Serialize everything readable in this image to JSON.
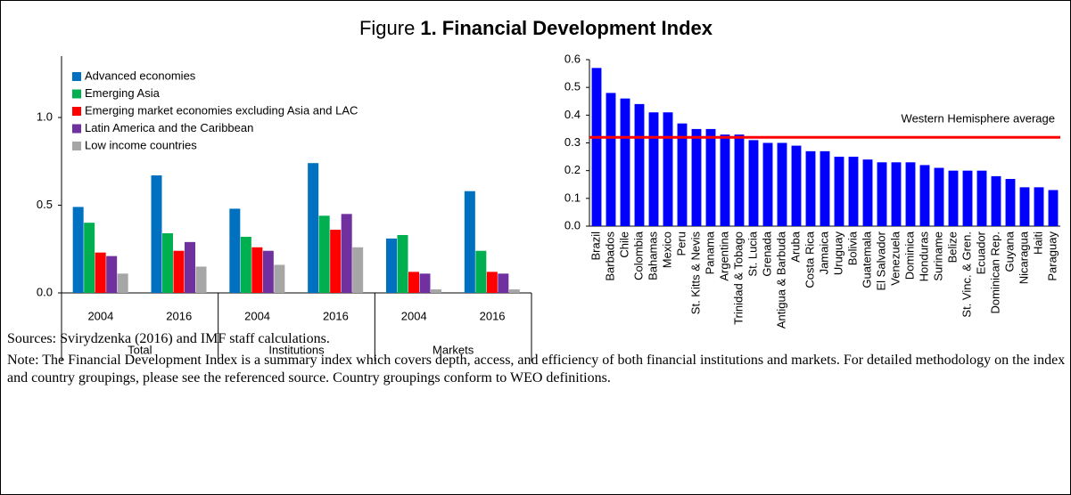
{
  "figure_label": "Figure",
  "title": "1. Financial Development Index",
  "chart_data": [
    {
      "type": "bar",
      "categories": [
        "2004",
        "2016",
        "2004",
        "2016",
        "2004",
        "2016"
      ],
      "groups": [
        "Total",
        "Institutions",
        "Markets"
      ],
      "ylim": [
        0,
        1.35
      ],
      "yticks": [
        {
          "value": 0,
          "label": "0.0"
        },
        {
          "value": 0.5,
          "label": "0.5"
        },
        {
          "value": 1,
          "label": "1.0"
        }
      ],
      "legend": "upper left",
      "series": [
        {
          "name": "Advanced economies",
          "color": "#0070c0",
          "values": [
            0.49,
            0.67,
            0.48,
            0.74,
            0.31,
            0.58
          ]
        },
        {
          "name": "Emerging Asia",
          "color": "#00b050",
          "values": [
            0.4,
            0.34,
            0.32,
            0.44,
            0.33,
            0.24
          ]
        },
        {
          "name": "Emerging market economies excluding Asia and LAC",
          "color": "#ff0000",
          "values": [
            0.23,
            0.24,
            0.26,
            0.36,
            0.12,
            0.12
          ]
        },
        {
          "name": "Latin America and the Caribbean",
          "color": "#7030a0",
          "values": [
            0.21,
            0.29,
            0.24,
            0.45,
            0.11,
            0.11
          ]
        },
        {
          "name": "Low income countries",
          "color": "#a6a6a6",
          "values": [
            0.11,
            0.15,
            0.16,
            0.26,
            0.02,
            0.02
          ]
        }
      ]
    },
    {
      "type": "bar",
      "categories": [
        "Brazil",
        "Barbados",
        "Chile",
        "Colombia",
        "Bahamas",
        "Mexico",
        "Peru",
        "St. Kitts & Nevis",
        "Panama",
        "Argentina",
        "Trinidad & Tobago",
        "St. Lucia",
        "Grenada",
        "Antigua & Barbuda",
        "Aruba",
        "Costa Rica",
        "Jamaica",
        "Uruguay",
        "Bolivia",
        "Guatemala",
        "El Salvador",
        "Venezuela",
        "Dominica",
        "Honduras",
        "Suriname",
        "Belize",
        "St. Vinc. & Gren.",
        "Ecuador",
        "Dominican Rep.",
        "Guyana",
        "Nicaragua",
        "Haiti",
        "Paraguay"
      ],
      "values": [
        0.57,
        0.48,
        0.46,
        0.44,
        0.41,
        0.41,
        0.37,
        0.35,
        0.35,
        0.33,
        0.33,
        0.31,
        0.3,
        0.3,
        0.29,
        0.27,
        0.27,
        0.25,
        0.25,
        0.24,
        0.23,
        0.23,
        0.23,
        0.22,
        0.21,
        0.2,
        0.2,
        0.2,
        0.18,
        0.17,
        0.14,
        0.14,
        0.13
      ],
      "color": "#0000ff",
      "ylim": [
        0,
        0.6
      ],
      "yticks": [
        {
          "value": 0,
          "label": "0.0"
        },
        {
          "value": 0.1,
          "label": "0.1"
        },
        {
          "value": 0.2,
          "label": "0.2"
        },
        {
          "value": 0.3,
          "label": "0.3"
        },
        {
          "value": 0.4,
          "label": "0.4"
        },
        {
          "value": 0.5,
          "label": "0.5"
        },
        {
          "value": 0.6,
          "label": "0.6"
        }
      ],
      "reference_line": {
        "value": 0.32,
        "label": "Western Hemisphere average",
        "color": "#ff0000"
      }
    }
  ],
  "sources": "Sources: Svirydzenka (2016) and IMF staff calculations.",
  "note": "Note: The Financial Development Index is a summary index which covers depth, access, and efficiency of both financial institutions and markets.  For detailed methodology on the index and country groupings, please see the referenced source.  Country groupings conform to WEO definitions."
}
